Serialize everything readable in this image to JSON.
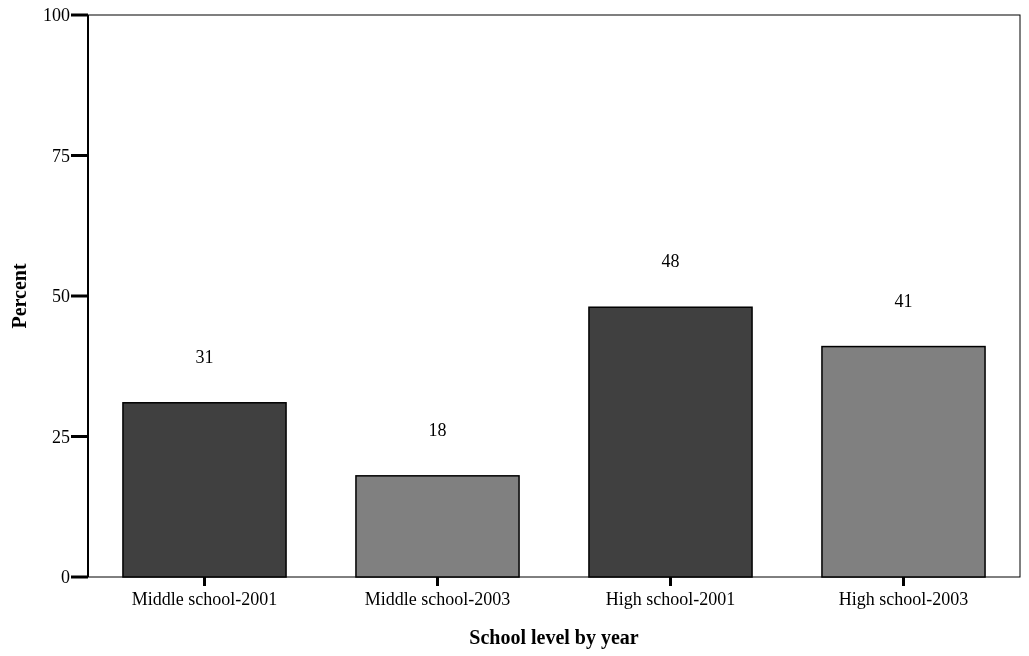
{
  "chart_data": {
    "type": "bar",
    "xlabel": "School level by year",
    "ylabel": "Percent",
    "categories": [
      "Middle school-2001",
      "Middle school-2003",
      "High school-2001",
      "High school-2003"
    ],
    "values": [
      31,
      18,
      48,
      41
    ],
    "colors": [
      "#404040",
      "#808080",
      "#404040",
      "#808080"
    ],
    "ylim": [
      0,
      100
    ],
    "yticks": [
      0,
      25,
      50,
      75,
      100
    ],
    "data_labels": true
  }
}
